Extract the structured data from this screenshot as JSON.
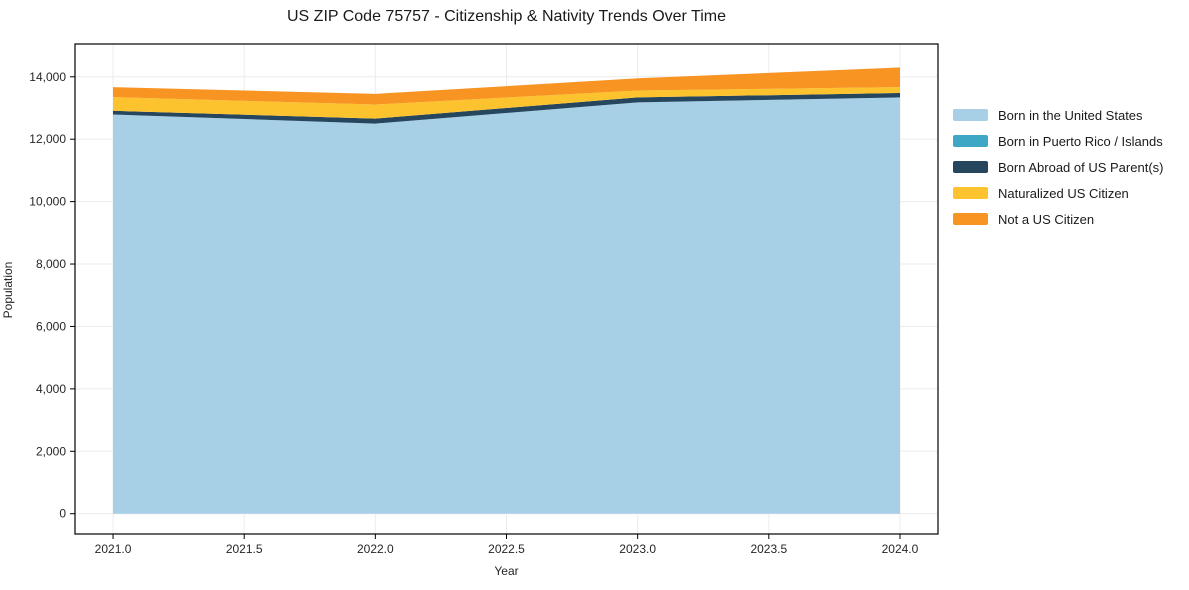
{
  "chart_data": {
    "type": "area",
    "stacked": true,
    "title": "US ZIP Code 75757 - Citizenship & Nativity Trends Over Time",
    "xlabel": "Year",
    "ylabel": "Population",
    "x": [
      2021,
      2022,
      2023,
      2024
    ],
    "series": [
      {
        "name": "Born in the United States",
        "color": "#a7cfe5",
        "values": [
          12790,
          12500,
          13180,
          13340
        ]
      },
      {
        "name": "Born in Puerto Rico / Islands",
        "color": "#3fa7c6",
        "values": [
          0,
          0,
          0,
          0
        ]
      },
      {
        "name": "Born Abroad of US Parent(s)",
        "color": "#25465c",
        "values": [
          120,
          160,
          160,
          140
        ]
      },
      {
        "name": "Naturalized US Citizen",
        "color": "#fdc32f",
        "values": [
          440,
          450,
          220,
          190
        ]
      },
      {
        "name": "Not a US Citizen",
        "color": "#f79422",
        "values": [
          320,
          340,
          390,
          630
        ]
      }
    ],
    "totals": [
      13670,
      13450,
      13950,
      14300
    ],
    "xticks": {
      "values": [
        2021.0,
        2021.5,
        2022.0,
        2022.5,
        2023.0,
        2023.5,
        2024.0
      ],
      "labels": [
        "2021.0",
        "2021.5",
        "2022.0",
        "2022.5",
        "2023.0",
        "2023.5",
        "2024.0"
      ]
    },
    "yticks": {
      "values": [
        0,
        2000,
        4000,
        6000,
        8000,
        10000,
        12000,
        14000
      ],
      "labels": [
        "0",
        "2,000",
        "4,000",
        "6,000",
        "8,000",
        "10,000",
        "12,000",
        "14,000"
      ]
    },
    "xlim": [
      2020.855,
      2024.145
    ],
    "ylim": [
      -650,
      15050
    ],
    "grid": true,
    "legend_position": "right",
    "colors": {
      "grid": "#ececec",
      "spine": "#000000",
      "tick_text": "#262626",
      "background": "#ffffff"
    }
  }
}
